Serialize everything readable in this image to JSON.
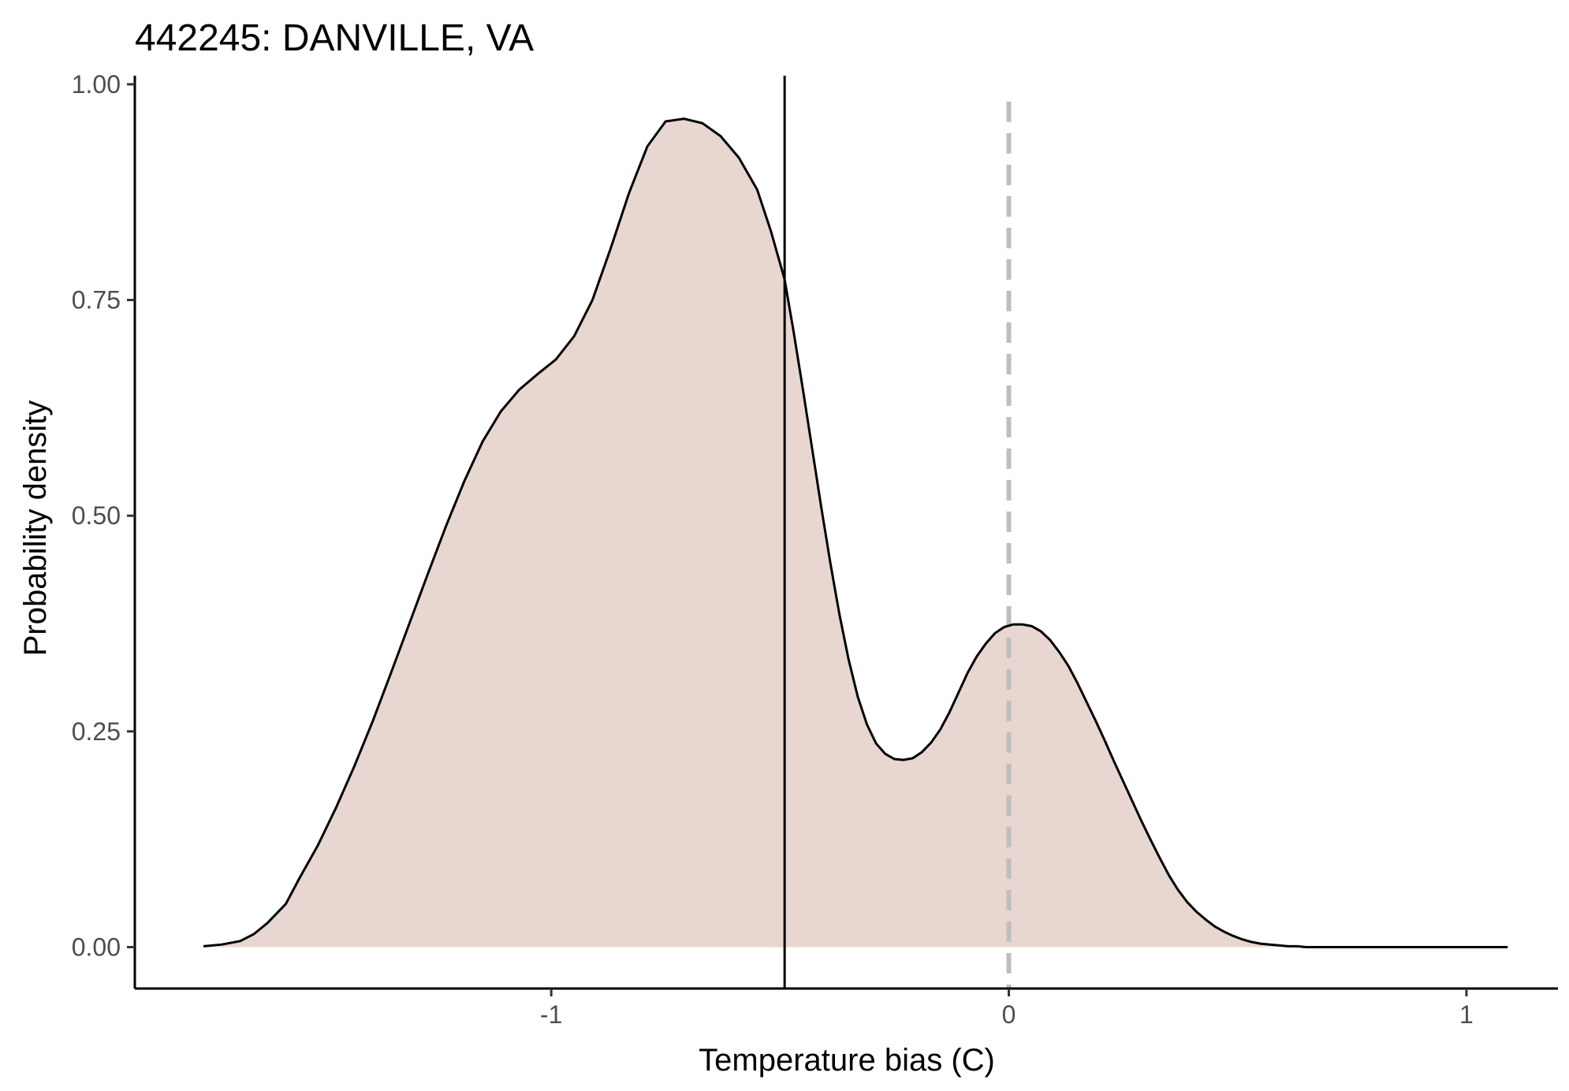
{
  "chart_data": {
    "type": "area",
    "title": "442245: DANVILLE, VA",
    "xlabel": "Temperature bias (C)",
    "ylabel": "Probability density",
    "xlim": [
      -1.91,
      1.2
    ],
    "ylim": [
      -0.048,
      1.01
    ],
    "x_ticks": [
      -1,
      0,
      1
    ],
    "x_tick_labels": [
      "-1",
      "0",
      "1"
    ],
    "y_ticks": [
      0,
      0.25,
      0.5,
      0.75,
      1
    ],
    "y_tick_labels": [
      "0.00",
      "0.25",
      "0.50",
      "0.75",
      "1.00"
    ],
    "grid": false,
    "legend": "none",
    "fill_color": "#e8d6d0",
    "line_color": "#000000",
    "reference_lines": [
      {
        "x": -0.49,
        "style": "solid",
        "color": "#000000"
      },
      {
        "x": 0.0,
        "style": "dashed",
        "color": "#bebebe"
      }
    ],
    "series": [
      {
        "x": [
          -1.76,
          -1.72,
          -1.68,
          -1.65,
          -1.62,
          -1.58,
          -1.55,
          -1.51,
          -1.47,
          -1.43,
          -1.39,
          -1.35,
          -1.31,
          -1.27,
          -1.23,
          -1.19,
          -1.15,
          -1.11,
          -1.07,
          -1.03,
          -0.99,
          -0.95,
          -0.91,
          -0.87,
          -0.83,
          -0.79,
          -0.75,
          -0.71,
          -0.67,
          -0.63,
          -0.59,
          -0.55,
          -0.52,
          -0.49,
          -0.47,
          -0.45,
          -0.43,
          -0.41,
          -0.39,
          -0.37,
          -0.35,
          -0.33,
          -0.31,
          -0.29,
          -0.27,
          -0.25,
          -0.23,
          -0.21,
          -0.19,
          -0.17,
          -0.15,
          -0.13,
          -0.11,
          -0.09,
          -0.07,
          -0.05,
          -0.03,
          -0.01,
          0.01,
          0.03,
          0.05,
          0.07,
          0.09,
          0.11,
          0.13,
          0.15,
          0.17,
          0.19,
          0.21,
          0.23,
          0.25,
          0.27,
          0.29,
          0.31,
          0.33,
          0.35,
          0.37,
          0.39,
          0.41,
          0.43,
          0.45,
          0.47,
          0.49,
          0.51,
          0.53,
          0.55,
          0.57,
          0.59,
          0.61,
          0.63,
          0.65,
          0.67,
          0.69,
          0.71,
          0.73,
          0.75,
          0.77,
          0.79,
          0.81,
          0.83,
          0.85,
          0.87,
          0.89,
          0.91,
          0.93,
          0.95,
          0.97,
          0.99,
          1.01,
          1.03,
          1.05,
          1.07,
          1.09
        ],
        "y": [
          0.001,
          0.003,
          0.007,
          0.015,
          0.028,
          0.05,
          0.08,
          0.118,
          0.162,
          0.21,
          0.262,
          0.318,
          0.375,
          0.432,
          0.488,
          0.54,
          0.586,
          0.621,
          0.646,
          0.664,
          0.681,
          0.708,
          0.75,
          0.81,
          0.874,
          0.928,
          0.957,
          0.96,
          0.955,
          0.94,
          0.915,
          0.878,
          0.83,
          0.774,
          0.712,
          0.646,
          0.578,
          0.51,
          0.445,
          0.385,
          0.333,
          0.29,
          0.258,
          0.236,
          0.224,
          0.218,
          0.217,
          0.219,
          0.226,
          0.237,
          0.252,
          0.272,
          0.295,
          0.318,
          0.337,
          0.352,
          0.364,
          0.371,
          0.374,
          0.374,
          0.372,
          0.366,
          0.356,
          0.342,
          0.326,
          0.306,
          0.284,
          0.262,
          0.239,
          0.215,
          0.192,
          0.169,
          0.146,
          0.124,
          0.103,
          0.083,
          0.066,
          0.052,
          0.041,
          0.032,
          0.024,
          0.018,
          0.013,
          0.009,
          0.006,
          0.004,
          0.003,
          0.002,
          0.001,
          0.001,
          0.0,
          0.0,
          0.0,
          0.0,
          0.0,
          0.0,
          0.0,
          0.0,
          0.0,
          0.0,
          0.0,
          0.0,
          0.0,
          0.0,
          0.0,
          0.0,
          0.0,
          0.0,
          0.0,
          0.0,
          0.0,
          0.0,
          0.0
        ]
      }
    ]
  }
}
